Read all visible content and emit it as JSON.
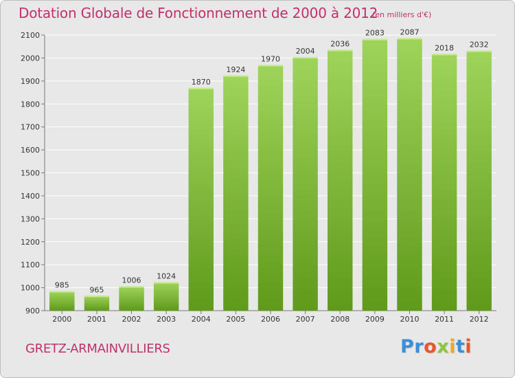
{
  "header": {
    "title": "Dotation Globale de Fonctionnement de 2000 à 2012",
    "unit_note": "(en milliers d'€)"
  },
  "footer": {
    "commune": "GRETZ-ARMAINVILLIERS",
    "logo_text": "Proxiti",
    "logo_colors": [
      "#3a8fd6",
      "#3a8fd6",
      "#e8562a",
      "#8cc63f",
      "#f5a623",
      "#3a8fd6",
      "#e8562a"
    ]
  },
  "colors": {
    "title": "#c0306b",
    "bar_top": "#9fd45a",
    "bar_bottom": "#5f9a1a",
    "background": "#e8e8e8",
    "grid": "#ffffff"
  },
  "chart_data": {
    "type": "bar",
    "categories": [
      "2000",
      "2001",
      "2002",
      "2003",
      "2004",
      "2005",
      "2006",
      "2007",
      "2008",
      "2009",
      "2010",
      "2011",
      "2012"
    ],
    "values": [
      985,
      965,
      1006,
      1024,
      1870,
      1924,
      1970,
      2004,
      2036,
      2083,
      2087,
      2018,
      2032
    ],
    "title": "Dotation Globale de Fonctionnement de 2000 à 2012",
    "subtitle": "(en milliers d'€)",
    "ylim": [
      900,
      2100
    ],
    "yticks": [
      900,
      1000,
      1100,
      1200,
      1300,
      1400,
      1500,
      1600,
      1700,
      1800,
      1900,
      2000,
      2100
    ],
    "grid": true,
    "data_labels": true
  }
}
